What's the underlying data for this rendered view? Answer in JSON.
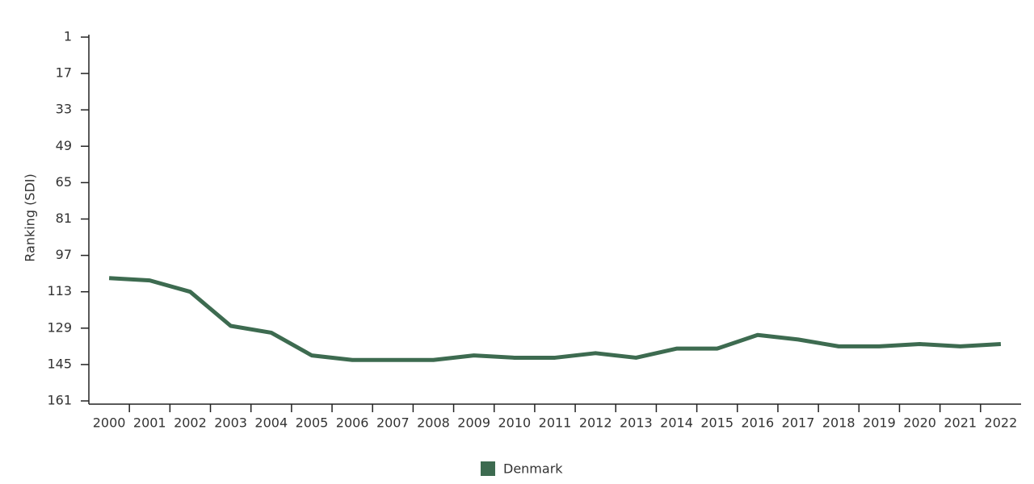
{
  "chart_data": {
    "type": "line",
    "y_label": "Ranking (SDI)",
    "categories": [
      "2000",
      "2001",
      "2002",
      "2003",
      "2004",
      "2005",
      "2006",
      "2007",
      "2008",
      "2009",
      "2010",
      "2011",
      "2012",
      "2013",
      "2014",
      "2015",
      "2016",
      "2017",
      "2018",
      "2019",
      "2020",
      "2021",
      "2022"
    ],
    "series": [
      {
        "name": "Denmark",
        "color": "#3d6b50",
        "values": [
          107,
          108,
          113,
          128,
          131,
          141,
          143,
          143,
          143,
          141,
          142,
          142,
          140,
          142,
          138,
          138,
          132,
          134,
          137,
          137,
          136,
          137,
          136
        ]
      }
    ],
    "ylim": [
      161,
      1
    ],
    "yticks": [
      1,
      17,
      33,
      49,
      65,
      81,
      97,
      113,
      129,
      145,
      161
    ],
    "grid": false,
    "legend": "bottom"
  }
}
